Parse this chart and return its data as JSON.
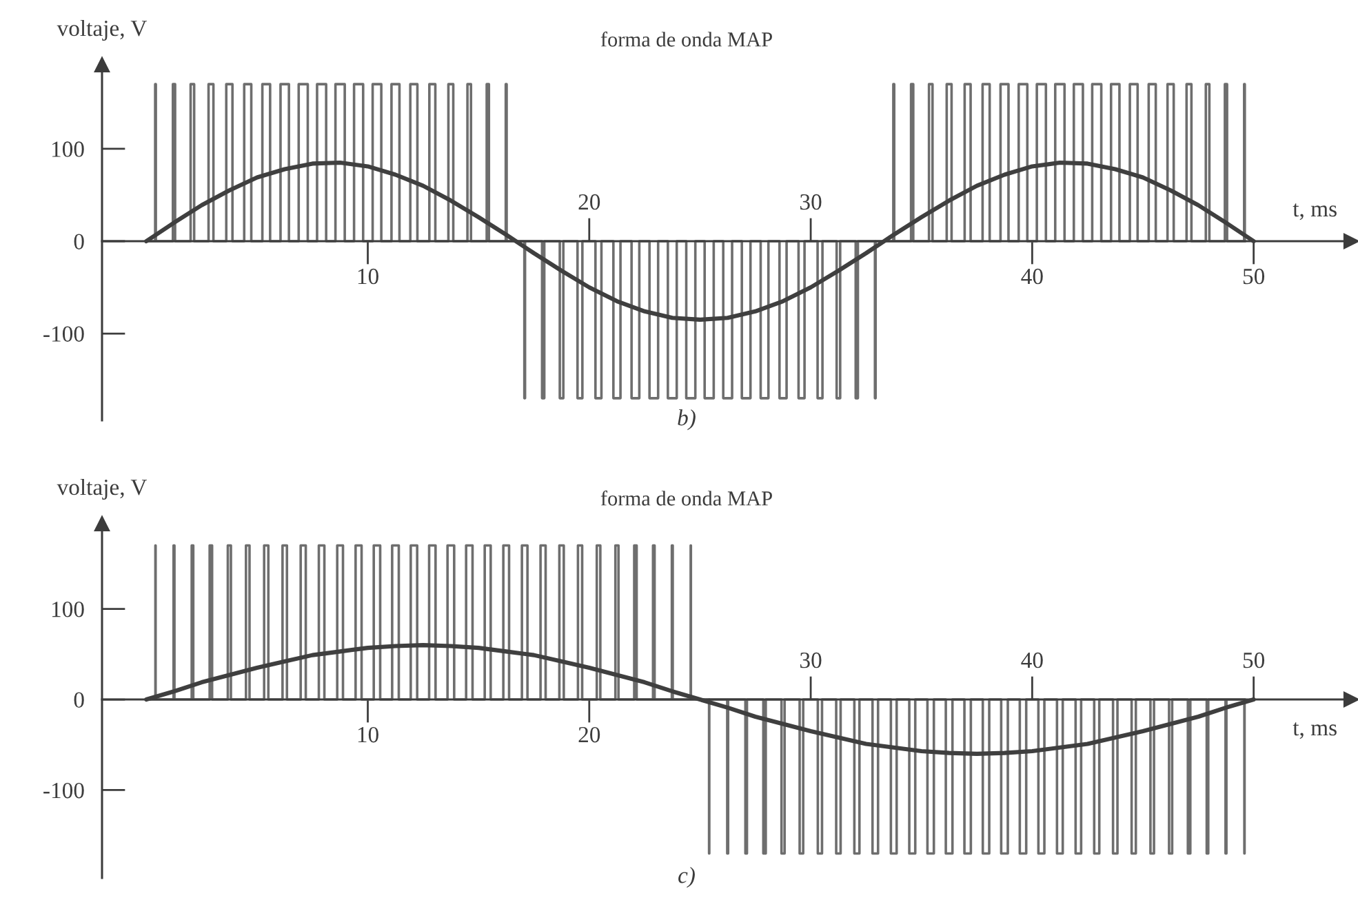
{
  "chart_data": [
    {
      "type": "line",
      "title": "forma de onda MAP",
      "xlabel": "t, ms",
      "ylabel": "voltaje, V",
      "annotations": [
        "b)"
      ],
      "xlim": [
        -2,
        54.4
      ],
      "ylim": [
        -194,
        191
      ],
      "xticks": [
        10,
        40,
        50
      ],
      "x2lim": [
        -2,
        54.4
      ],
      "x2ticks": [
        20,
        30
      ],
      "yticks": [
        -100,
        0,
        100
      ],
      "series": [
        {
          "type": "step",
          "color": "#6e6e6e",
          "x": [
            0,
            0.4,
            0.43,
            1.2,
            1.3,
            2.0,
            2.16,
            2.81,
            3.03,
            3.61,
            3.89,
            4.42,
            4.74,
            5.24,
            5.59,
            6.06,
            6.44,
            6.88,
            7.29,
            7.71,
            8.12,
            8.54,
            8.96,
            9.38,
            9.79,
            10.22,
            10.61,
            11.07,
            11.43,
            11.92,
            12.24,
            12.78,
            13.05,
            13.64,
            13.86,
            14.5,
            14.66,
            15.37,
            15.47,
            16.23,
            16.27,
            17.07,
            17.1,
            17.87,
            17.97,
            18.67,
            18.83,
            19.47,
            19.69,
            20.28,
            20.55,
            21.09,
            21.41,
            21.91,
            22.26,
            22.72,
            23.11,
            23.55,
            23.95,
            24.38,
            24.79,
            25.21,
            25.62,
            26.05,
            26.45,
            26.89,
            27.28,
            27.74,
            28.09,
            28.59,
            28.91,
            29.45,
            29.72,
            30.31,
            30.53,
            31.17,
            31.33,
            32.03,
            32.13,
            32.9,
            32.93,
            33.73,
            33.77,
            34.53,
            34.63,
            35.34,
            35.5,
            36.14,
            36.36,
            36.95,
            37.22,
            37.76,
            38.08,
            38.57,
            38.93,
            39.39,
            39.78,
            40.21,
            40.62,
            41.04,
            41.46,
            41.88,
            42.29,
            42.71,
            43.12,
            43.56,
            43.94,
            44.41,
            44.76,
            45.26,
            45.58,
            46.11,
            46.39,
            46.97,
            47.19,
            47.84,
            48.0,
            48.7,
            48.8,
            49.57,
            49.6
          ],
          "values": [
            0,
            170,
            0,
            170,
            0,
            170,
            0,
            170,
            0,
            170,
            0,
            170,
            0,
            170,
            0,
            170,
            0,
            170,
            0,
            170,
            0,
            170,
            0,
            170,
            0,
            170,
            0,
            170,
            0,
            170,
            0,
            170,
            0,
            170,
            0,
            170,
            0,
            170,
            0,
            170,
            0,
            -170,
            0,
            -170,
            0,
            -170,
            0,
            -170,
            0,
            -170,
            0,
            -170,
            0,
            -170,
            0,
            -170,
            0,
            -170,
            0,
            -170,
            0,
            -170,
            0,
            -170,
            0,
            -170,
            0,
            -170,
            0,
            -170,
            0,
            -170,
            0,
            -170,
            0,
            -170,
            0,
            -170,
            0,
            -170,
            0,
            170,
            0,
            170,
            0,
            170,
            0,
            170,
            0,
            170,
            0,
            170,
            0,
            170,
            0,
            170,
            0,
            170,
            0,
            170,
            0,
            170,
            0,
            170,
            0,
            170,
            0,
            170,
            0,
            170,
            0,
            170,
            0,
            170,
            0,
            170,
            0,
            170,
            0,
            170,
            0
          ]
        },
        {
          "color": "#3f3f3f",
          "x": [
            0,
            1.25,
            2.5,
            3.75,
            5,
            6.25,
            7.5,
            8.75,
            10,
            11.25,
            12.5,
            13.75,
            15,
            16.25,
            17.5,
            18.75,
            20,
            21.25,
            22.5,
            23.75,
            25,
            26.25,
            27.5,
            28.75,
            30,
            31.25,
            32.5,
            33.75,
            35,
            36.25,
            37.5,
            38.75,
            40,
            41.25,
            42.5,
            43.75,
            45,
            46.25,
            47.5,
            48.75,
            50
          ],
          "values": [
            0,
            20,
            39,
            55,
            69,
            78,
            84,
            85,
            81,
            72,
            60,
            44,
            26,
            7,
            -13,
            -32,
            -50,
            -65,
            -76,
            -83,
            -85,
            -83,
            -76,
            -65,
            -50,
            -32,
            -13,
            7,
            26,
            44,
            60,
            72,
            81,
            85,
            84,
            78,
            69,
            55,
            39,
            20,
            0
          ]
        }
      ]
    },
    {
      "type": "line",
      "title": "forma de onda MAP",
      "xlabel": "t, ms",
      "ylabel": "voltaje, V",
      "annotations": [
        "c)"
      ],
      "xlim": [
        -2,
        54.4
      ],
      "ylim": [
        -197,
        194
      ],
      "xticks": [
        10,
        20
      ],
      "x2lim": [
        -2,
        54.4
      ],
      "x2ticks": [
        30,
        40,
        50
      ],
      "yticks": [
        -100,
        0,
        100
      ],
      "series": [
        {
          "type": "step",
          "color": "#6e6e6e",
          "x": [
            0,
            0.41,
            0.42,
            1.23,
            1.27,
            2.05,
            2.12,
            2.86,
            2.97,
            3.68,
            3.82,
            4.5,
            4.66,
            5.32,
            5.51,
            6.15,
            6.35,
            6.97,
            7.2,
            7.79,
            8.04,
            8.62,
            8.88,
            9.45,
            9.72,
            10.27,
            10.56,
            11.1,
            11.4,
            11.94,
            12.23,
            12.77,
            13.06,
            13.6,
            13.9,
            14.44,
            14.73,
            15.28,
            15.55,
            16.12,
            16.38,
            16.96,
            17.21,
            17.8,
            18.03,
            18.65,
            18.85,
            19.49,
            19.68,
            20.34,
            20.5,
            21.18,
            21.32,
            22.03,
            22.14,
            22.88,
            22.95,
            23.73,
            23.77,
            24.58,
            24.59,
            25.41,
            25.42,
            26.23,
            26.27,
            27.05,
            27.12,
            27.86,
            27.97,
            28.68,
            28.82,
            29.5,
            29.66,
            30.32,
            30.51,
            31.15,
            31.35,
            31.97,
            32.2,
            32.79,
            33.04,
            33.62,
            33.88,
            34.45,
            34.72,
            35.27,
            35.56,
            36.1,
            36.4,
            36.94,
            37.23,
            37.77,
            38.06,
            38.6,
            38.9,
            39.44,
            39.73,
            40.28,
            40.55,
            41.12,
            41.38,
            41.96,
            42.21,
            42.8,
            43.03,
            43.65,
            43.85,
            44.49,
            44.68,
            45.34,
            45.5,
            46.18,
            46.32,
            47.03,
            47.14,
            47.88,
            47.95,
            48.73,
            48.77,
            49.58,
            49.59
          ],
          "values": [
            0,
            170,
            0,
            170,
            0,
            170,
            0,
            170,
            0,
            170,
            0,
            170,
            0,
            170,
            0,
            170,
            0,
            170,
            0,
            170,
            0,
            170,
            0,
            170,
            0,
            170,
            0,
            170,
            0,
            170,
            0,
            170,
            0,
            170,
            0,
            170,
            0,
            170,
            0,
            170,
            0,
            170,
            0,
            170,
            0,
            170,
            0,
            170,
            0,
            170,
            0,
            170,
            0,
            170,
            0,
            170,
            0,
            170,
            0,
            170,
            0,
            -170,
            0,
            -170,
            0,
            -170,
            0,
            -170,
            0,
            -170,
            0,
            -170,
            0,
            -170,
            0,
            -170,
            0,
            -170,
            0,
            -170,
            0,
            -170,
            0,
            -170,
            0,
            -170,
            0,
            -170,
            0,
            -170,
            0,
            -170,
            0,
            -170,
            0,
            -170,
            0,
            -170,
            0,
            -170,
            0,
            -170,
            0,
            -170,
            0,
            -170,
            0,
            -170,
            0,
            -170,
            0,
            -170,
            0,
            -170,
            0,
            -170,
            0,
            -170,
            0,
            -170,
            0
          ]
        },
        {
          "color": "#3f3f3f",
          "x": [
            0,
            1.25,
            2.5,
            3.75,
            5,
            6.25,
            7.5,
            8.75,
            10,
            11.25,
            12.5,
            13.75,
            15,
            16.25,
            17.5,
            18.75,
            20,
            21.25,
            22.5,
            23.75,
            25,
            26.25,
            27.5,
            28.75,
            30,
            31.25,
            32.5,
            33.75,
            35,
            36.25,
            37.5,
            38.75,
            40,
            41.25,
            42.5,
            43.75,
            45,
            46.25,
            47.5,
            48.75,
            50
          ],
          "values": [
            0,
            9,
            19,
            27,
            35,
            42,
            49,
            53,
            57,
            59,
            60,
            59,
            57,
            53,
            49,
            42,
            35,
            27,
            19,
            9,
            0,
            -9,
            -19,
            -27,
            -35,
            -42,
            -49,
            -53,
            -57,
            -59,
            -60,
            -59,
            -57,
            -53,
            -49,
            -42,
            -35,
            -27,
            -19,
            -9,
            0
          ]
        }
      ]
    }
  ]
}
